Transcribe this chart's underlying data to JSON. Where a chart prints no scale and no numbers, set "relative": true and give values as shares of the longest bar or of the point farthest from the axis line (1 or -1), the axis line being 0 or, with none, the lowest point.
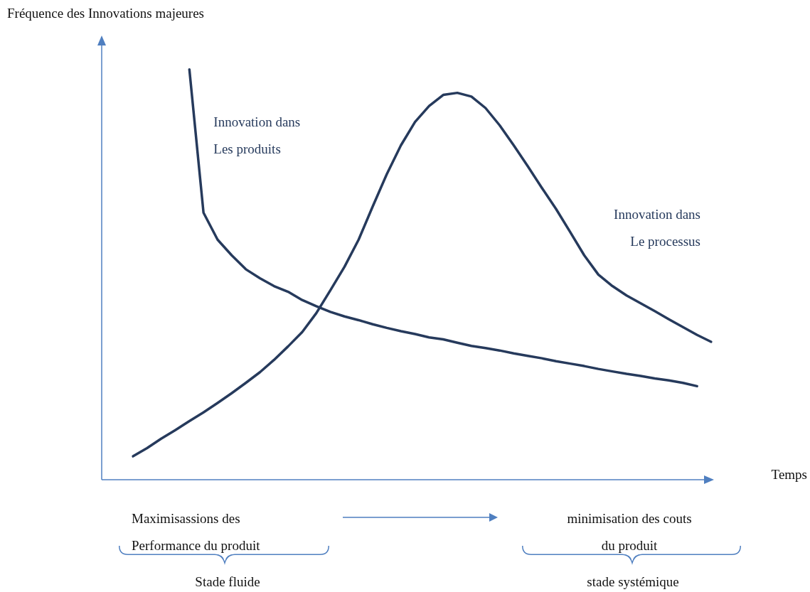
{
  "chart_data": {
    "type": "line",
    "relative": true,
    "marker": "none",
    "ylabel": "Fréquence des Innovations majeures",
    "xlabel": "Temps",
    "categories": [
      null,
      null,
      null,
      null,
      null,
      null,
      null,
      null,
      null,
      null,
      null,
      null,
      null,
      null,
      null,
      null,
      null,
      null,
      null,
      null,
      null,
      null,
      null,
      null,
      null,
      null,
      null,
      null,
      null,
      null,
      null,
      null,
      null,
      null,
      null,
      null,
      null,
      null,
      null,
      null,
      null,
      null
    ],
    "series": [
      {
        "name": "Innovation dans Les produits",
        "color": "#263a5c",
        "values": [
          null,
          null,
          null,
          null,
          1.0,
          0.651,
          0.585,
          0.547,
          0.513,
          0.491,
          0.472,
          0.458,
          0.438,
          0.423,
          0.409,
          0.398,
          0.389,
          0.379,
          0.37,
          0.362,
          0.355,
          0.347,
          0.342,
          0.334,
          0.326,
          0.321,
          0.315,
          0.308,
          0.302,
          0.296,
          0.289,
          0.283,
          0.277,
          0.27,
          0.264,
          0.258,
          0.253,
          0.247,
          0.242,
          0.236,
          0.228,
          null
        ]
      },
      {
        "name": "Innovation dans Le processus",
        "color": "#263a5c",
        "values": [
          0.057,
          0.077,
          0.1,
          0.121,
          0.143,
          0.164,
          0.187,
          0.211,
          0.236,
          0.262,
          0.292,
          0.325,
          0.36,
          0.406,
          0.462,
          0.519,
          0.585,
          0.666,
          0.745,
          0.815,
          0.872,
          0.911,
          0.938,
          0.943,
          0.934,
          0.906,
          0.864,
          0.815,
          0.764,
          0.711,
          0.66,
          0.604,
          0.547,
          0.5,
          0.472,
          0.449,
          0.43,
          0.411,
          0.391,
          0.372,
          0.353,
          0.336
        ]
      }
    ],
    "annotations": [
      "Maximisassions des Performance du produit",
      "Stade fluide",
      "minimisation des couts du produit",
      "stade systémique"
    ]
  }
}
